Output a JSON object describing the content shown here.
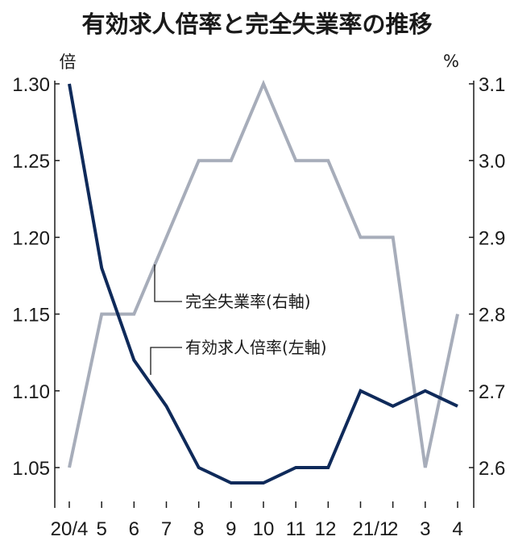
{
  "chart_data": {
    "type": "line",
    "title": "有効求人倍率と完全失業率の推移",
    "y_left_unit": "倍",
    "y_right_unit": "%",
    "categories": [
      "20/4",
      "5",
      "6",
      "7",
      "8",
      "9",
      "10",
      "11",
      "12",
      "21/1",
      "2",
      "3",
      "4"
    ],
    "x_tick_labels": [
      "20/4",
      "5",
      "6",
      "7",
      "8",
      "9",
      "10",
      "11",
      "12",
      "21/1",
      "2",
      "3",
      "4"
    ],
    "y_left_ticks": [
      "1.30",
      "1.25",
      "1.20",
      "1.15",
      "1.10",
      "1.05"
    ],
    "y_right_ticks": [
      "3.1",
      "3.0",
      "2.9",
      "2.8",
      "2.7",
      "2.6"
    ],
    "y_left_lim": [
      1.0,
      1.31
    ],
    "y_right_lim": [
      2.5,
      3.12
    ],
    "series": [
      {
        "name": "有効求人倍率(左軸)",
        "axis": "left",
        "color": "#0f2a5a",
        "values": [
          1.3,
          1.18,
          1.12,
          1.09,
          1.05,
          1.04,
          1.04,
          1.05,
          1.05,
          1.1,
          1.09,
          1.1,
          1.09
        ]
      },
      {
        "name": "完全失業率(右軸)",
        "axis": "right",
        "color": "#a7adba",
        "values": [
          2.6,
          2.8,
          2.8,
          2.9,
          3.0,
          3.0,
          3.1,
          3.0,
          3.0,
          2.9,
          2.9,
          2.6,
          2.8
        ]
      }
    ],
    "grid": false
  }
}
